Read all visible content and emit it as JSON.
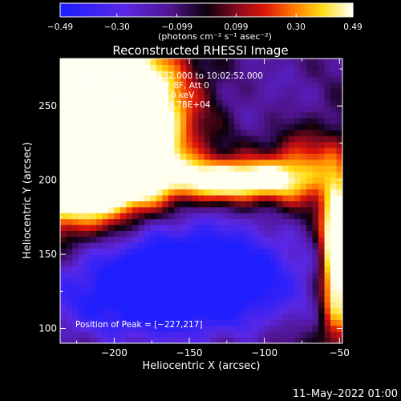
{
  "chart_data": {
    "type": "heatmap",
    "title": "Reconstructed RHESSI Image",
    "xlabel": "Heliocentric X (arcsec)",
    "ylabel": "Heliocentric Y (arcsec)",
    "xlim": [
      -236,
      -48
    ],
    "ylim": [
      90,
      282
    ],
    "x_ticks": [
      -200,
      -150,
      -100,
      -50
    ],
    "y_ticks": [
      100,
      150,
      200,
      250
    ],
    "x_tick_labels": [
      "−200",
      "−150",
      "−100",
      "−50"
    ],
    "y_tick_labels": [
      "100",
      "150",
      "200",
      "250"
    ],
    "colorbar": {
      "range": [
        -0.49,
        0.49
      ],
      "ticks": [
        -0.49,
        -0.3,
        -0.099,
        0.099,
        0.3,
        0.49
      ],
      "tick_labels": [
        "−0.49",
        "−0.30",
        "−0.099",
        "0.099",
        "0.30",
        "0.49"
      ],
      "unit_label": "(photons cm⁻² s⁻¹ asec⁻²)"
    },
    "annotations": {
      "time": "19–May–2012 10:00:32.000 to 10:02:52.000",
      "detectors": "Detectors: 3F 5F 6F 7F 8F, Att 0",
      "energy": "Energy Range: 3.0 – 6.0 keV",
      "counts": "Clean     Total counts: 9.78E+04",
      "peak": "Position of Peak = [−227,217]"
    },
    "peak": [
      -227,
      217
    ],
    "sources": [
      {
        "x": -225,
        "y": 225,
        "sx": 38,
        "sy": 42,
        "amp": 1.15
      },
      {
        "x": -195,
        "y": 250,
        "sx": 30,
        "sy": 28,
        "amp": 0.55
      },
      {
        "x": -195,
        "y": 205,
        "sx": 25,
        "sy": 18,
        "amp": 0.35
      },
      {
        "x": -120,
        "y": 200,
        "sx": 28,
        "sy": 10,
        "amp": 0.75
      },
      {
        "x": -75,
        "y": 210,
        "sx": 18,
        "sy": 18,
        "amp": 0.35
      },
      {
        "x": -52,
        "y": 150,
        "sx": 7,
        "sy": 35,
        "amp": 0.85
      },
      {
        "x": -175,
        "y": 145,
        "sx": 55,
        "sy": 30,
        "amp": -0.55
      },
      {
        "x": -175,
        "y": 115,
        "sx": 60,
        "sy": 22,
        "amp": -0.28
      },
      {
        "x": -105,
        "y": 135,
        "sx": 35,
        "sy": 22,
        "amp": -0.22
      },
      {
        "x": -95,
        "y": 255,
        "sx": 45,
        "sy": 40,
        "amp": -0.18
      }
    ]
  },
  "footer": {
    "timestamp": "11–May–2022 01:00"
  }
}
